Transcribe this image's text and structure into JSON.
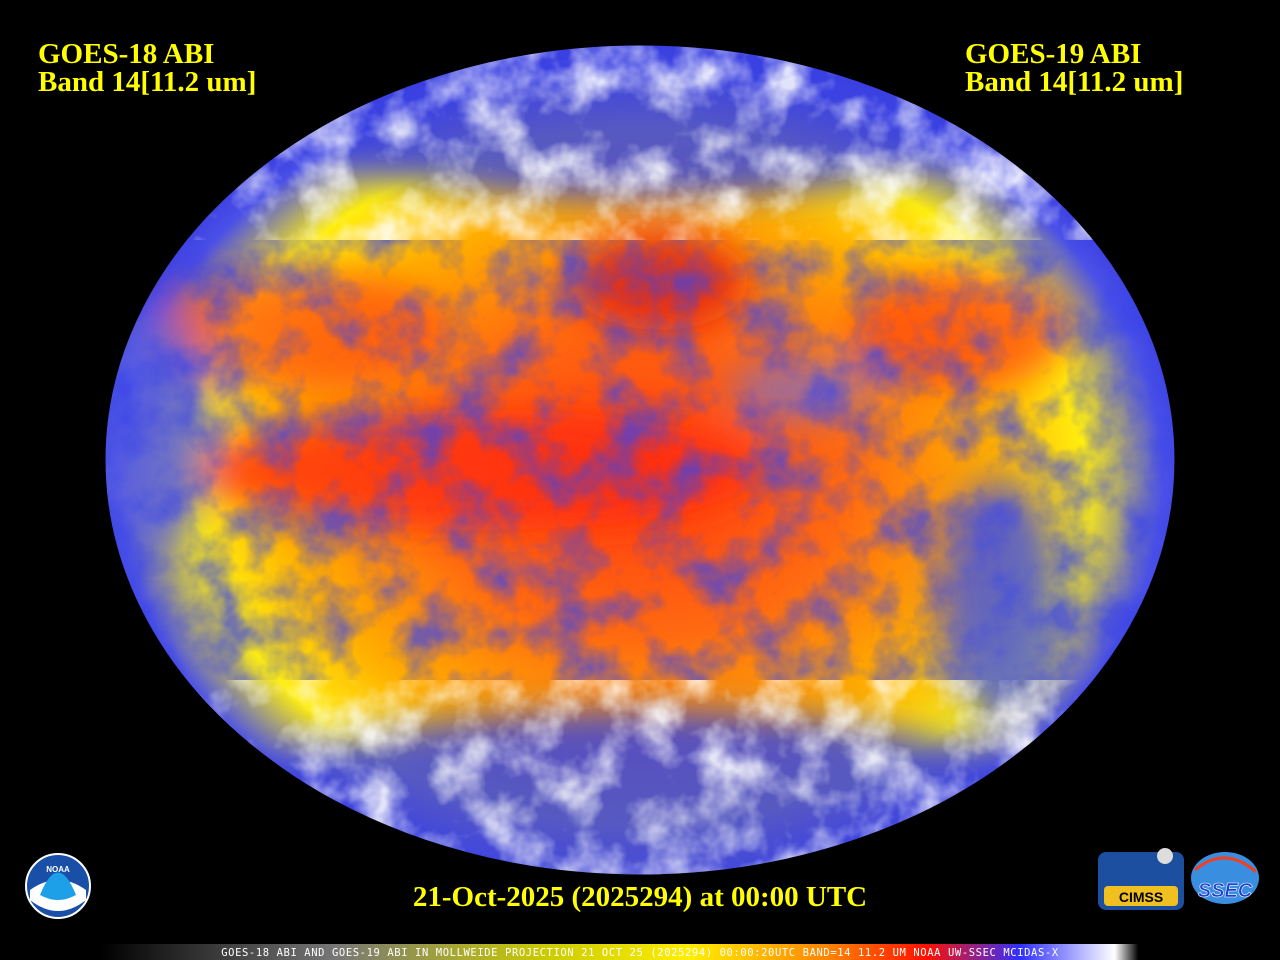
{
  "header": {
    "left": {
      "line1": "GOES-18 ABI",
      "line2": "Band 14[11.2 um]"
    },
    "right": {
      "line1": "GOES-19 ABI",
      "line2": "Band 14[11.2 um]"
    }
  },
  "timestamp": "21-Oct-2025 (2025294) at 00:00 UTC",
  "caption": "GOES-18 ABI AND GOES-19 ABI IN MOLLWEIDE PROJECTION 21 OCT 25 (2025294) 00:00:20UTC BAND=14 11.2 UM NOAA UW-SSEC MCIDAS-X",
  "logos": {
    "noaa": "NOAA",
    "cimss": "CIMSS",
    "ssec": "SSEC"
  }
}
